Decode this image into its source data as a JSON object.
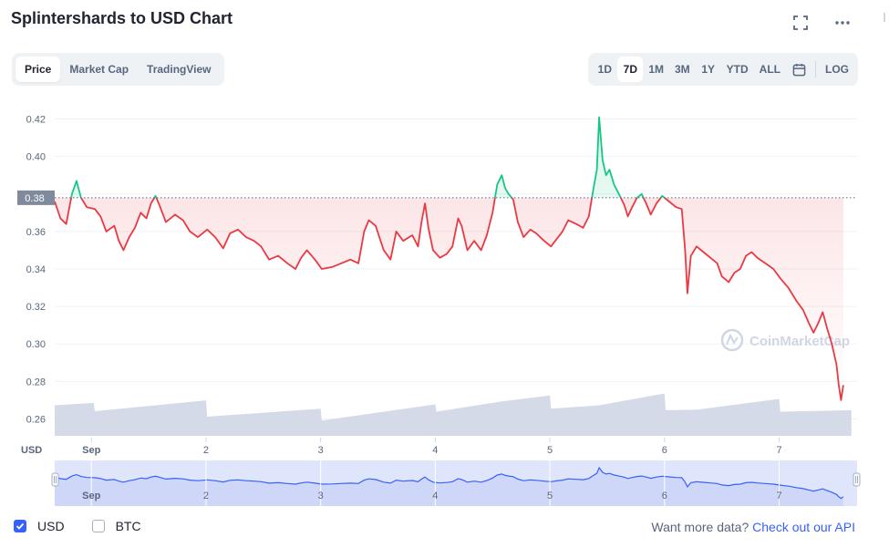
{
  "title": "Splintershards to USD Chart",
  "header_icons": [
    "fullscreen-icon",
    "more-icon"
  ],
  "tabs": [
    {
      "label": "Price",
      "active": true
    },
    {
      "label": "Market Cap",
      "active": false
    },
    {
      "label": "TradingView",
      "active": false
    }
  ],
  "ranges": [
    {
      "label": "1D",
      "active": false
    },
    {
      "label": "7D",
      "active": true
    },
    {
      "label": "1M",
      "active": false
    },
    {
      "label": "3M",
      "active": false
    },
    {
      "label": "1Y",
      "active": false
    },
    {
      "label": "YTD",
      "active": false
    },
    {
      "label": "ALL",
      "active": false
    }
  ],
  "calendar_icon": "calendar-icon",
  "log_label": "LOG",
  "legend": [
    {
      "label": "USD",
      "checked": true
    },
    {
      "label": "BTC",
      "checked": false
    }
  ],
  "footer": {
    "text": "Want more data?",
    "link": "Check out our API"
  },
  "watermark": "CoinMarketCap",
  "colors": {
    "up": "#16c784",
    "down": "#ea3943",
    "volume": "#cfd6e4",
    "navigator_line": "#3861fb",
    "navigator_fill": "#dfe5fb",
    "accent": "#3861fb"
  },
  "chart_data": {
    "type": "line",
    "ylabel": "USD",
    "ylim": [
      0.25,
      0.43
    ],
    "yticks": [
      0.26,
      0.28,
      0.3,
      0.32,
      0.34,
      0.36,
      0.38,
      0.4,
      0.42
    ],
    "xlim": [
      0,
      7.0
    ],
    "xticks": [
      {
        "x": 0.32,
        "label": "Sep"
      },
      {
        "x": 1.32,
        "label": "2"
      },
      {
        "x": 2.32,
        "label": "3"
      },
      {
        "x": 3.32,
        "label": "4"
      },
      {
        "x": 4.32,
        "label": "5"
      },
      {
        "x": 5.32,
        "label": "6"
      },
      {
        "x": 6.32,
        "label": "7"
      }
    ],
    "reference_price": 0.378,
    "reference_label": "0.38",
    "series": [
      {
        "values": [
          [
            0.0,
            0.376
          ],
          [
            0.05,
            0.367
          ],
          [
            0.1,
            0.364
          ],
          [
            0.15,
            0.38
          ],
          [
            0.19,
            0.387
          ],
          [
            0.23,
            0.378
          ],
          [
            0.28,
            0.373
          ],
          [
            0.35,
            0.372
          ],
          [
            0.4,
            0.368
          ],
          [
            0.45,
            0.36
          ],
          [
            0.52,
            0.363
          ],
          [
            0.56,
            0.355
          ],
          [
            0.6,
            0.35
          ],
          [
            0.65,
            0.357
          ],
          [
            0.7,
            0.362
          ],
          [
            0.75,
            0.37
          ],
          [
            0.8,
            0.367
          ],
          [
            0.84,
            0.375
          ],
          [
            0.88,
            0.379
          ],
          [
            0.92,
            0.373
          ],
          [
            0.97,
            0.365
          ],
          [
            1.05,
            0.369
          ],
          [
            1.12,
            0.366
          ],
          [
            1.18,
            0.36
          ],
          [
            1.25,
            0.357
          ],
          [
            1.33,
            0.361
          ],
          [
            1.4,
            0.357
          ],
          [
            1.47,
            0.351
          ],
          [
            1.53,
            0.359
          ],
          [
            1.6,
            0.361
          ],
          [
            1.67,
            0.357
          ],
          [
            1.74,
            0.355
          ],
          [
            1.8,
            0.352
          ],
          [
            1.87,
            0.345
          ],
          [
            1.95,
            0.347
          ],
          [
            2.03,
            0.343
          ],
          [
            2.1,
            0.34
          ],
          [
            2.15,
            0.346
          ],
          [
            2.2,
            0.35
          ],
          [
            2.27,
            0.345
          ],
          [
            2.33,
            0.34
          ],
          [
            2.42,
            0.341
          ],
          [
            2.5,
            0.343
          ],
          [
            2.58,
            0.345
          ],
          [
            2.65,
            0.343
          ],
          [
            2.7,
            0.36
          ],
          [
            2.74,
            0.366
          ],
          [
            2.8,
            0.363
          ],
          [
            2.87,
            0.35
          ],
          [
            2.93,
            0.345
          ],
          [
            2.98,
            0.36
          ],
          [
            3.04,
            0.355
          ],
          [
            3.12,
            0.358
          ],
          [
            3.17,
            0.352
          ],
          [
            3.2,
            0.365
          ],
          [
            3.23,
            0.375
          ],
          [
            3.26,
            0.362
          ],
          [
            3.3,
            0.35
          ],
          [
            3.36,
            0.346
          ],
          [
            3.42,
            0.348
          ],
          [
            3.47,
            0.352
          ],
          [
            3.52,
            0.367
          ],
          [
            3.55,
            0.363
          ],
          [
            3.6,
            0.35
          ],
          [
            3.66,
            0.355
          ],
          [
            3.72,
            0.35
          ],
          [
            3.77,
            0.358
          ],
          [
            3.82,
            0.37
          ],
          [
            3.86,
            0.385
          ],
          [
            3.9,
            0.39
          ],
          [
            3.93,
            0.383
          ],
          [
            3.96,
            0.38
          ],
          [
            4.0,
            0.377
          ],
          [
            4.04,
            0.365
          ],
          [
            4.09,
            0.357
          ],
          [
            4.15,
            0.361
          ],
          [
            4.2,
            0.359
          ],
          [
            4.27,
            0.355
          ],
          [
            4.33,
            0.352
          ],
          [
            4.38,
            0.356
          ],
          [
            4.43,
            0.36
          ],
          [
            4.48,
            0.366
          ],
          [
            4.55,
            0.364
          ],
          [
            4.61,
            0.362
          ],
          [
            4.66,
            0.368
          ],
          [
            4.7,
            0.383
          ],
          [
            4.73,
            0.393
          ],
          [
            4.75,
            0.421
          ],
          [
            4.78,
            0.398
          ],
          [
            4.81,
            0.39
          ],
          [
            4.84,
            0.393
          ],
          [
            4.88,
            0.385
          ],
          [
            4.93,
            0.379
          ],
          [
            4.97,
            0.374
          ],
          [
            5.0,
            0.368
          ],
          [
            5.03,
            0.372
          ],
          [
            5.08,
            0.378
          ],
          [
            5.12,
            0.38
          ],
          [
            5.16,
            0.375
          ],
          [
            5.2,
            0.369
          ],
          [
            5.25,
            0.375
          ],
          [
            5.3,
            0.379
          ],
          [
            5.36,
            0.376
          ],
          [
            5.42,
            0.373
          ],
          [
            5.47,
            0.372
          ],
          [
            5.5,
            0.35
          ],
          [
            5.52,
            0.327
          ],
          [
            5.55,
            0.347
          ],
          [
            5.6,
            0.352
          ],
          [
            5.66,
            0.349
          ],
          [
            5.72,
            0.346
          ],
          [
            5.78,
            0.343
          ],
          [
            5.82,
            0.336
          ],
          [
            5.88,
            0.333
          ],
          [
            5.93,
            0.338
          ],
          [
            5.98,
            0.34
          ],
          [
            6.03,
            0.347
          ],
          [
            6.08,
            0.349
          ],
          [
            6.13,
            0.346
          ],
          [
            6.2,
            0.343
          ],
          [
            6.27,
            0.34
          ],
          [
            6.33,
            0.335
          ],
          [
            6.4,
            0.33
          ],
          [
            6.47,
            0.323
          ],
          [
            6.53,
            0.318
          ],
          [
            6.58,
            0.311
          ],
          [
            6.62,
            0.306
          ],
          [
            6.66,
            0.311
          ],
          [
            6.7,
            0.317
          ],
          [
            6.74,
            0.308
          ],
          [
            6.78,
            0.3
          ],
          [
            6.82,
            0.289
          ],
          [
            6.84,
            0.278
          ],
          [
            6.86,
            0.27
          ],
          [
            6.88,
            0.278
          ]
        ]
      }
    ],
    "volume": [
      [
        0.0,
        0.62
      ],
      [
        0.34,
        0.67
      ],
      [
        0.35,
        0.5
      ],
      [
        1.32,
        0.72
      ],
      [
        1.33,
        0.39
      ],
      [
        2.32,
        0.55
      ],
      [
        2.33,
        0.31
      ],
      [
        3.32,
        0.64
      ],
      [
        3.33,
        0.49
      ],
      [
        3.9,
        0.7
      ],
      [
        4.32,
        0.82
      ],
      [
        4.33,
        0.55
      ],
      [
        4.75,
        0.62
      ],
      [
        5.32,
        0.86
      ],
      [
        5.33,
        0.52
      ],
      [
        5.6,
        0.53
      ],
      [
        6.32,
        0.75
      ],
      [
        6.33,
        0.49
      ],
      [
        6.95,
        0.52
      ]
    ]
  }
}
